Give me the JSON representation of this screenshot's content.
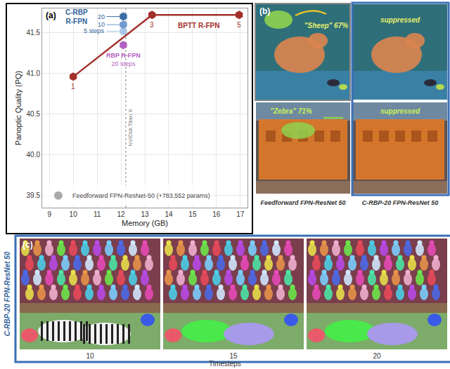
{
  "chart_data": {
    "type": "scatter",
    "panel_label": "(a)",
    "xlabel": "Memory (GB)",
    "ylabel": "Panoptic Quality (PQ)",
    "xlim": [
      8.7,
      17.3
    ],
    "ylim": [
      39.35,
      41.8
    ],
    "xticks": [
      9,
      10,
      11,
      12,
      13,
      14,
      15,
      16,
      17
    ],
    "yticks": [
      39.5,
      {
        "value": 40,
        "label": "40.0"
      },
      40.5,
      {
        "value": 41,
        "label": "41.0"
      },
      41.5
    ],
    "grid": true,
    "legend": "lower left",
    "reference_line": {
      "x": 12.2,
      "label": "NVIDIA Titan X"
    },
    "series": [
      {
        "name": "BPTT R-FPN",
        "type": "line",
        "marker": "hexagon",
        "color": "#a3302b",
        "x": [
          10.0,
          13.3,
          16.95
        ],
        "values": [
          40.96,
          41.72,
          41.72
        ],
        "point_labels": [
          "1",
          "3",
          "5"
        ]
      },
      {
        "name": "C-RBP R-FPN",
        "type": "scatter",
        "marker": "hexagon",
        "color": "#2f5f9a",
        "colors": [
          "#a9c5e6",
          "#6f9bd1",
          "#3d6da8"
        ],
        "x": [
          12.1,
          12.1,
          12.1
        ],
        "values": [
          41.52,
          41.6,
          41.7
        ],
        "point_labels": [
          "5 steps",
          "10",
          "20"
        ]
      },
      {
        "name": "RBP R-FPN",
        "type": "scatter",
        "marker": "hexagon",
        "color": "#b45fc0",
        "x": [
          12.1
        ],
        "values": [
          41.35
        ],
        "point_labels": [
          "20 steps"
        ]
      },
      {
        "name": "Feedforward FPN-ResNet-50 (+783,552 params)",
        "type": "scatter",
        "marker": "circle",
        "color": "#aaaaaa",
        "x": [],
        "values": []
      }
    ]
  },
  "panel_b": {
    "label": "(b)",
    "rows": [
      {
        "feedforward_text": "\"Sheep\" 67%",
        "crbp_text": "suppressed"
      },
      {
        "feedforward_text": "\"Zebra\" 71%",
        "crbp_text": "suppressed"
      }
    ],
    "captions": [
      "Feedforward FPN-ResNet 50",
      "C-RBP-20 FPN-ResNet 50"
    ]
  },
  "panel_c": {
    "label": "(c)",
    "side_label": "C-RBP-20 FPN-ResNet 50",
    "timesteps": [
      10,
      15,
      20
    ],
    "xlabel": "Timesteps"
  }
}
